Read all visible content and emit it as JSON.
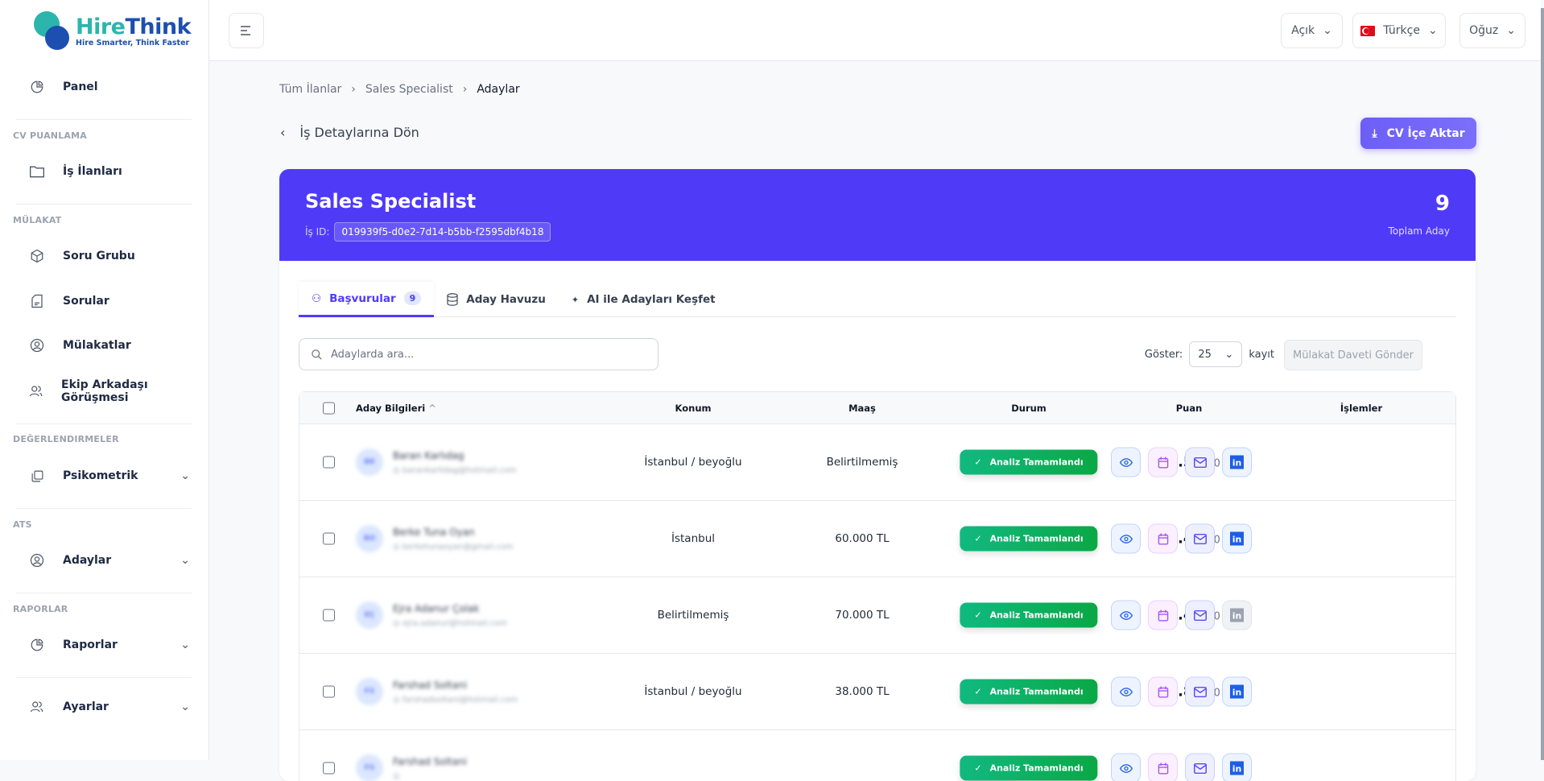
{
  "logo": {
    "name_part1": "Hire",
    "name_part2": "Think",
    "tagline": "Hire Smarter, Think Faster"
  },
  "sidebar": {
    "panel": "Panel",
    "sections": [
      "CV PUANLAMA",
      "MÜLAKAT",
      "DEĞERLENDIRMELER",
      "ATS",
      "RAPORLAR"
    ],
    "items": {
      "is_ilanlari": "İş İlanları",
      "soru_grubu": "Soru Grubu",
      "sorular": "Sorular",
      "mulakatlar": "Mülakatlar",
      "ekip": "Ekip Arkadaşı Görüşmesi",
      "psikometrik": "Psikometrik",
      "adaylar": "Adaylar",
      "raporlar": "Raporlar",
      "ayarlar": "Ayarlar"
    }
  },
  "topbar": {
    "theme": "Açık",
    "language": "Türkçe",
    "user": "Oğuz"
  },
  "breadcrumb": [
    "Tüm İlanlar",
    "Sales Specialist",
    "Adaylar"
  ],
  "back_label": "İş Detaylarına Dön",
  "import_button": "CV İçe Aktar",
  "job": {
    "title": "Sales Specialist",
    "id_label": "İş ID:",
    "id": "019939f5-d0e2-7d14-b5bb-f2595dbf4b18",
    "total": "9",
    "total_label": "Toplam Aday"
  },
  "tabs": [
    {
      "label": "Başvurular",
      "count": "9"
    },
    {
      "label": "Aday Havuzu"
    },
    {
      "label": "AI ile Adayları Keşfet"
    }
  ],
  "search": {
    "placeholder": "Adaylarda ara..."
  },
  "page_size": {
    "label": "Göster:",
    "value": "25",
    "suffix": "kayıt"
  },
  "invite_button": "Mülakat Daveti Gönder",
  "table": {
    "headers": [
      "Aday Bilgileri",
      "Konum",
      "Maaş",
      "Durum",
      "Puan",
      "İşlemler"
    ],
    "rows": [
      {
        "initials": "BK",
        "name": "Baran Karlıdag",
        "email": "barankarlidag@hotmail.com",
        "location": "İstanbul / beyoğlu",
        "salary": "Belirtilmemiş",
        "status": "Analiz Tamamlandı",
        "score": "56.5",
        "max": "/100",
        "linkedin": true
      },
      {
        "initials": "BO",
        "name": "Berke Tuna Oyan",
        "email": "berketunaoyan@gmail.com",
        "location": "İstanbul",
        "salary": "60.000 TL",
        "status": "Analiz Tamamlandı",
        "score": "42.4",
        "max": "/100",
        "linkedin": true
      },
      {
        "initials": "EÇ",
        "name": "Ejra Adanur Çolak",
        "email": "ejra.adanur@hotmail.com",
        "location": "Belirtilmemiş",
        "salary": "70.000 TL",
        "status": "Analiz Tamamlandı",
        "score": "59.4",
        "max": "/100",
        "linkedin": false
      },
      {
        "initials": "FS",
        "name": "Farshad Soltani",
        "email": "farshadsoltani@hotmail.com",
        "location": "İstanbul / beyoğlu",
        "salary": "38.000 TL",
        "status": "Analiz Tamamlandı",
        "score": "50.8",
        "max": "/100",
        "linkedin": true
      },
      {
        "initials": "FS",
        "name": "Farshad Soltani",
        "email": "",
        "location": "",
        "salary": "",
        "status": "Analiz Tamamlandı",
        "score": "",
        "max": "",
        "linkedin": true
      }
    ]
  },
  "colors": {
    "primary": "#4f3bf7",
    "success": "#10b981",
    "brand_teal": "#2bb5ad",
    "brand_blue": "#1d4fb0"
  }
}
